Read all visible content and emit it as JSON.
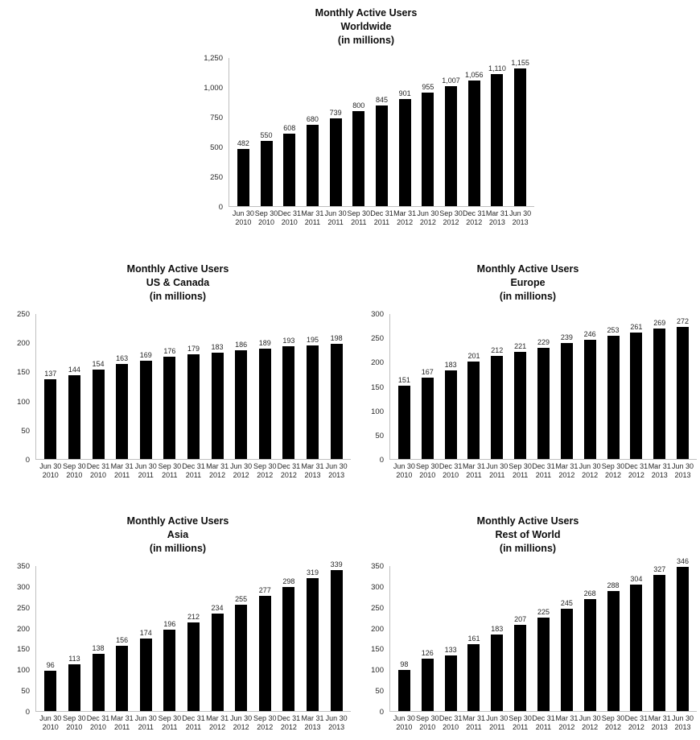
{
  "page": {
    "background": "#ffffff",
    "bar_color": "#000000",
    "axis_color": "#bfbfbf"
  },
  "chart_data": [
    {
      "type": "bar",
      "title": "Monthly Active Users Worldwide (in millions)",
      "title_lines": [
        "Monthly Active Users",
        "Worldwide",
        "(in millions)"
      ],
      "categories": [
        [
          "Jun 30",
          "2010"
        ],
        [
          "Sep 30",
          "2010"
        ],
        [
          "Dec 31",
          "2010"
        ],
        [
          "Mar 31",
          "2011"
        ],
        [
          "Jun 30",
          "2011"
        ],
        [
          "Sep 30",
          "2011"
        ],
        [
          "Dec 31",
          "2011"
        ],
        [
          "Mar 31",
          "2012"
        ],
        [
          "Jun 30",
          "2012"
        ],
        [
          "Sep 30",
          "2012"
        ],
        [
          "Dec 31",
          "2012"
        ],
        [
          "Mar 31",
          "2013"
        ],
        [
          "Jun 30",
          "2013"
        ]
      ],
      "values": [
        482,
        550,
        608,
        680,
        739,
        800,
        845,
        901,
        955,
        1007,
        1056,
        1110,
        1155
      ],
      "labels": [
        "482",
        "550",
        "608",
        "680",
        "739",
        "800",
        "845",
        "901",
        "955",
        "1,007",
        "1,056",
        "1,110",
        "1,155"
      ],
      "ylim": [
        0,
        1250
      ],
      "yticks": [
        "1,250",
        "1,000",
        "750",
        "500",
        "250",
        "0"
      ],
      "grid": false,
      "legend": "none",
      "bar_color": "#000000"
    },
    {
      "type": "bar",
      "title": "Monthly Active Users US & Canada (in millions)",
      "title_lines": [
        "Monthly Active Users",
        "US & Canada",
        "(in millions)"
      ],
      "categories": [
        [
          "Jun 30",
          "2010"
        ],
        [
          "Sep 30",
          "2010"
        ],
        [
          "Dec 31",
          "2010"
        ],
        [
          "Mar 31",
          "2011"
        ],
        [
          "Jun 30",
          "2011"
        ],
        [
          "Sep 30",
          "2011"
        ],
        [
          "Dec 31",
          "2011"
        ],
        [
          "Mar 31",
          "2012"
        ],
        [
          "Jun 30",
          "2012"
        ],
        [
          "Sep 30",
          "2012"
        ],
        [
          "Dec 31",
          "2012"
        ],
        [
          "Mar 31",
          "2013"
        ],
        [
          "Jun 30",
          "2013"
        ]
      ],
      "values": [
        137,
        144,
        154,
        163,
        169,
        176,
        179,
        183,
        186,
        189,
        193,
        195,
        198
      ],
      "labels": [
        "137",
        "144",
        "154",
        "163",
        "169",
        "176",
        "179",
        "183",
        "186",
        "189",
        "193",
        "195",
        "198"
      ],
      "ylim": [
        0,
        250
      ],
      "yticks": [
        "250",
        "200",
        "150",
        "100",
        "50",
        "0"
      ],
      "grid": false,
      "legend": "none",
      "bar_color": "#000000"
    },
    {
      "type": "bar",
      "title": "Monthly Active Users Europe (in millions)",
      "title_lines": [
        "Monthly Active Users",
        "Europe",
        "(in millions)"
      ],
      "categories": [
        [
          "Jun 30",
          "2010"
        ],
        [
          "Sep 30",
          "2010"
        ],
        [
          "Dec 31",
          "2010"
        ],
        [
          "Mar 31",
          "2011"
        ],
        [
          "Jun 30",
          "2011"
        ],
        [
          "Sep 30",
          "2011"
        ],
        [
          "Dec 31",
          "2011"
        ],
        [
          "Mar 31",
          "2012"
        ],
        [
          "Jun 30",
          "2012"
        ],
        [
          "Sep 30",
          "2012"
        ],
        [
          "Dec 31",
          "2012"
        ],
        [
          "Mar 31",
          "2013"
        ],
        [
          "Jun 30",
          "2013"
        ]
      ],
      "values": [
        151,
        167,
        183,
        201,
        212,
        221,
        229,
        239,
        246,
        253,
        261,
        269,
        272
      ],
      "labels": [
        "151",
        "167",
        "183",
        "201",
        "212",
        "221",
        "229",
        "239",
        "246",
        "253",
        "261",
        "269",
        "272"
      ],
      "ylim": [
        0,
        300
      ],
      "yticks": [
        "300",
        "250",
        "200",
        "150",
        "100",
        "50",
        "0"
      ],
      "grid": false,
      "legend": "none",
      "bar_color": "#000000"
    },
    {
      "type": "bar",
      "title": "Monthly Active Users Asia (in millions)",
      "title_lines": [
        "Monthly Active Users",
        "Asia",
        "(in millions)"
      ],
      "categories": [
        [
          "Jun 30",
          "2010"
        ],
        [
          "Sep 30",
          "2010"
        ],
        [
          "Dec 31",
          "2010"
        ],
        [
          "Mar 31",
          "2011"
        ],
        [
          "Jun 30",
          "2011"
        ],
        [
          "Sep 30",
          "2011"
        ],
        [
          "Dec 31",
          "2011"
        ],
        [
          "Mar 31",
          "2012"
        ],
        [
          "Jun 30",
          "2012"
        ],
        [
          "Sep 30",
          "2012"
        ],
        [
          "Dec 31",
          "2012"
        ],
        [
          "Mar 31",
          "2013"
        ],
        [
          "Jun 30",
          "2013"
        ]
      ],
      "values": [
        96,
        113,
        138,
        156,
        174,
        196,
        212,
        234,
        255,
        277,
        298,
        319,
        339
      ],
      "labels": [
        "96",
        "113",
        "138",
        "156",
        "174",
        "196",
        "212",
        "234",
        "255",
        "277",
        "298",
        "319",
        "339"
      ],
      "ylim": [
        0,
        350
      ],
      "yticks": [
        "350",
        "300",
        "250",
        "200",
        "150",
        "100",
        "50",
        "0"
      ],
      "grid": false,
      "legend": "none",
      "bar_color": "#000000"
    },
    {
      "type": "bar",
      "title": "Monthly Active Users Rest of World (in millions)",
      "title_lines": [
        "Monthly Active Users",
        "Rest of World",
        "(in millions)"
      ],
      "categories": [
        [
          "Jun 30",
          "2010"
        ],
        [
          "Sep 30",
          "2010"
        ],
        [
          "Dec 31",
          "2010"
        ],
        [
          "Mar 31",
          "2011"
        ],
        [
          "Jun 30",
          "2011"
        ],
        [
          "Sep 30",
          "2011"
        ],
        [
          "Dec 31",
          "2011"
        ],
        [
          "Mar 31",
          "2012"
        ],
        [
          "Jun 30",
          "2012"
        ],
        [
          "Sep 30",
          "2012"
        ],
        [
          "Dec 31",
          "2012"
        ],
        [
          "Mar 31",
          "2013"
        ],
        [
          "Jun 30",
          "2013"
        ]
      ],
      "values": [
        98,
        126,
        133,
        161,
        183,
        207,
        225,
        245,
        268,
        288,
        304,
        327,
        346
      ],
      "labels": [
        "98",
        "126",
        "133",
        "161",
        "183",
        "207",
        "225",
        "245",
        "268",
        "288",
        "304",
        "327",
        "346"
      ],
      "ylim": [
        0,
        350
      ],
      "yticks": [
        "350",
        "300",
        "250",
        "200",
        "150",
        "100",
        "50",
        "0"
      ],
      "grid": false,
      "legend": "none",
      "bar_color": "#000000"
    }
  ]
}
